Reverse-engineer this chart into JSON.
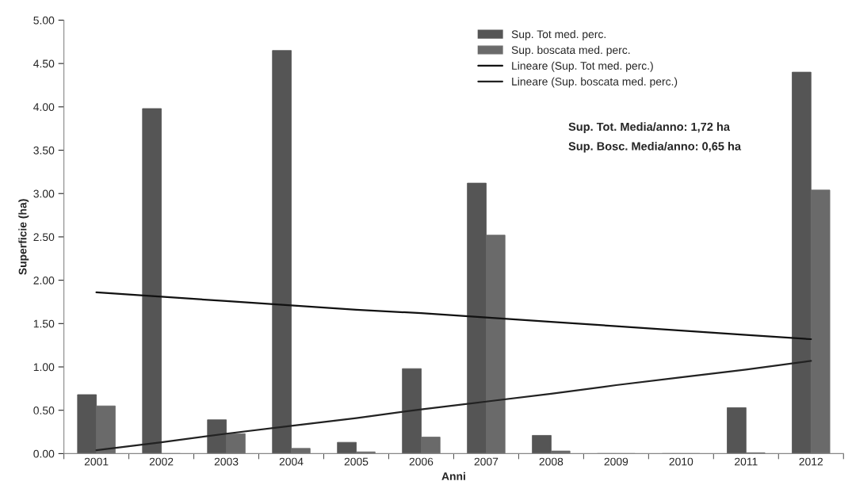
{
  "chart_data": {
    "type": "bar",
    "xlabel": "Anni",
    "ylabel": "Superficie (ha)",
    "categories": [
      "2001",
      "2002",
      "2003",
      "2004",
      "2005",
      "2006",
      "2007",
      "2008",
      "2009",
      "2010",
      "2011",
      "2012"
    ],
    "series": [
      {
        "name": "Sup. Tot med. perc.",
        "color": "#555555",
        "values": [
          0.68,
          3.98,
          0.39,
          4.65,
          0.13,
          0.98,
          3.12,
          0.21,
          0,
          0,
          0.53,
          4.4
        ]
      },
      {
        "name": "Sup. boscata med. perc.",
        "color": "#6a6a6a",
        "values": [
          0.55,
          0,
          0.23,
          0.06,
          0.02,
          0.19,
          2.52,
          0.03,
          0,
          0,
          0.01,
          3.04
        ]
      },
      {
        "name": "Lineare (Sup. Tot med. perc.)",
        "type": "line",
        "color": "#111111",
        "values": [
          1.86,
          1.81,
          1.76,
          1.71,
          1.66,
          1.62,
          1.57,
          1.52,
          1.47,
          1.42,
          1.37,
          1.32
        ]
      },
      {
        "name": "Lineare (Sup. boscata med. perc.)",
        "type": "line",
        "color": "#222222",
        "values": [
          0.04,
          0.13,
          0.23,
          0.32,
          0.41,
          0.51,
          0.6,
          0.69,
          0.79,
          0.88,
          0.97,
          1.07
        ]
      }
    ],
    "ylim": [
      0,
      5
    ],
    "yticks": [
      {
        "value": 0,
        "label": "0.00"
      },
      {
        "value": 0.5,
        "label": "0.50"
      },
      {
        "value": 1,
        "label": "1.00"
      },
      {
        "value": 1.5,
        "label": "1.50"
      },
      {
        "value": 2,
        "label": "2.00"
      },
      {
        "value": 2.5,
        "label": "2.50"
      },
      {
        "value": 3,
        "label": "3.00"
      },
      {
        "value": 3.5,
        "label": "3.50"
      },
      {
        "value": 4,
        "label": "4.00"
      },
      {
        "value": 4.5,
        "label": "4.50"
      },
      {
        "value": 5,
        "label": "5.00"
      }
    ],
    "grid": false,
    "legend": "top right",
    "annotations": [
      "Sup. Tot. Media/anno: 1,72 ha",
      "Sup. Bosc. Media/anno: 0,65 ha"
    ]
  }
}
